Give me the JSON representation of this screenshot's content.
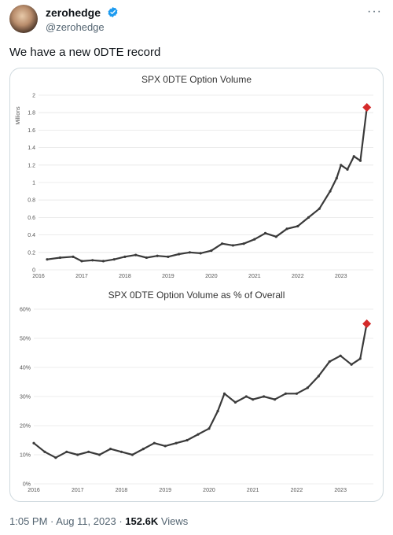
{
  "author": {
    "name": "zerohedge",
    "handle": "@zerohedge",
    "verified": true
  },
  "tweet": {
    "text": "We have a new 0DTE record"
  },
  "footer": {
    "time": "1:05 PM",
    "date": "Aug 11, 2023",
    "views_count": "152.6K",
    "views_label": "Views",
    "sep": "·"
  },
  "icons": {
    "verified": "verified-badge-icon",
    "more": "more-icon"
  },
  "colors": {
    "series": "#3a3a3a",
    "marker": "#d42a2a",
    "grid": "#e6e6e6",
    "verified": "#1d9bf0"
  },
  "chart_data": [
    {
      "type": "line",
      "title": "SPX 0DTE Option Volume",
      "ylabel": "Millions",
      "xlabel": "",
      "x_ticks": [
        "2016",
        "2017",
        "2018",
        "2019",
        "2020",
        "2021",
        "2022",
        "2023"
      ],
      "y_ticks": [
        "0",
        "0.2",
        "0.4",
        "0.6",
        "0.8",
        "1",
        "1.2",
        "1.4",
        "1.6",
        "1.8",
        "2"
      ],
      "xlim": [
        2016,
        2023.75
      ],
      "ylim": [
        0,
        2
      ],
      "grid": true,
      "series": [
        {
          "x": [
            2016.2,
            2016.5,
            2016.8,
            2017.0,
            2017.25,
            2017.5,
            2017.75,
            2018.0,
            2018.25,
            2018.5,
            2018.75,
            2019.0,
            2019.25,
            2019.5,
            2019.75,
            2020.0,
            2020.25,
            2020.5,
            2020.75,
            2021.0,
            2021.25,
            2021.5,
            2021.75,
            2022.0,
            2022.25,
            2022.5,
            2022.75,
            2022.9,
            2023.0,
            2023.15,
            2023.3,
            2023.45,
            2023.6
          ],
          "y": [
            0.12,
            0.14,
            0.15,
            0.1,
            0.11,
            0.1,
            0.12,
            0.15,
            0.17,
            0.14,
            0.16,
            0.15,
            0.18,
            0.2,
            0.19,
            0.22,
            0.3,
            0.28,
            0.3,
            0.35,
            0.42,
            0.38,
            0.47,
            0.5,
            0.6,
            0.7,
            0.9,
            1.05,
            1.2,
            1.15,
            1.3,
            1.25,
            1.86
          ]
        }
      ],
      "record_marker": {
        "x": 2023.6,
        "y": 1.86
      }
    },
    {
      "type": "line",
      "title": "SPX 0DTE Option Volume as % of Overall",
      "ylabel": "",
      "xlabel": "",
      "x_ticks": [
        "2016",
        "2017",
        "2018",
        "2019",
        "2020",
        "2021",
        "2022",
        "2023"
      ],
      "y_ticks": [
        "0%",
        "10%",
        "20%",
        "30%",
        "40%",
        "50%",
        "60%"
      ],
      "xlim": [
        2016,
        2023.75
      ],
      "ylim": [
        0,
        60
      ],
      "grid": true,
      "series": [
        {
          "x": [
            2016.0,
            2016.25,
            2016.5,
            2016.75,
            2017.0,
            2017.25,
            2017.5,
            2017.75,
            2018.0,
            2018.25,
            2018.5,
            2018.75,
            2019.0,
            2019.25,
            2019.5,
            2019.75,
            2020.0,
            2020.2,
            2020.35,
            2020.6,
            2020.85,
            2021.0,
            2021.25,
            2021.5,
            2021.75,
            2022.0,
            2022.25,
            2022.5,
            2022.75,
            2023.0,
            2023.25,
            2023.45,
            2023.6
          ],
          "y": [
            14,
            11,
            9,
            11,
            10,
            11,
            10,
            12,
            11,
            10,
            12,
            14,
            13,
            14,
            15,
            17,
            19,
            25,
            31,
            28,
            30,
            29,
            30,
            29,
            31,
            31,
            33,
            37,
            42,
            44,
            41,
            43,
            55
          ]
        }
      ],
      "record_marker": {
        "x": 2023.6,
        "y": 55
      }
    }
  ]
}
